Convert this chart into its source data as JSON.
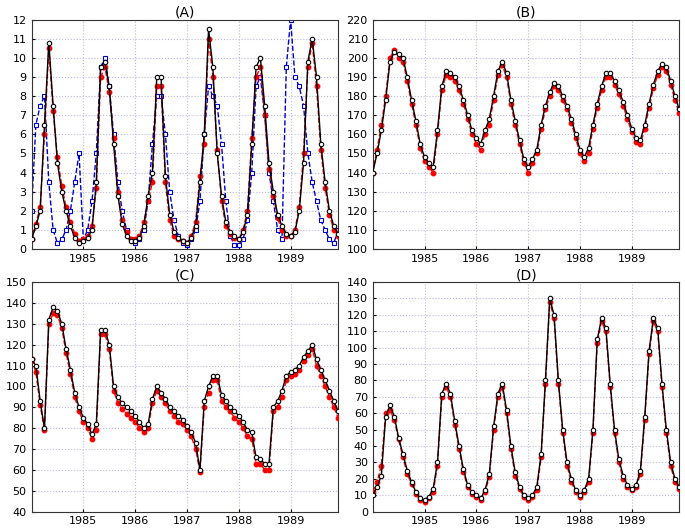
{
  "title_A": "(A)",
  "title_B": "(B)",
  "title_C": "(C)",
  "title_D": "(D)",
  "xlim": [
    1984.0,
    1989.92
  ],
  "ylim_A": [
    0,
    12
  ],
  "ylim_B": [
    100,
    220
  ],
  "ylim_C": [
    40,
    150
  ],
  "ylim_D": [
    0,
    140
  ],
  "yticks_A": [
    0,
    1,
    2,
    3,
    4,
    5,
    6,
    7,
    8,
    9,
    10,
    11,
    12
  ],
  "yticks_B": [
    100,
    110,
    120,
    130,
    140,
    150,
    160,
    170,
    180,
    190,
    200,
    210,
    220
  ],
  "yticks_C": [
    40,
    50,
    60,
    70,
    80,
    90,
    100,
    110,
    120,
    130,
    140,
    150
  ],
  "yticks_D": [
    0,
    10,
    20,
    30,
    40,
    50,
    60,
    70,
    80,
    90,
    100,
    110,
    120,
    130,
    140
  ],
  "xticks": [
    1985,
    1986,
    1987,
    1988,
    1989
  ],
  "color_black": "#000000",
  "color_red": "#ff0000",
  "color_blue": "#0000cc",
  "grid_color": "#bbbbdd",
  "bg_color": "#ffffff",
  "A_black": [
    0.5,
    1.2,
    2.0,
    6.5,
    10.8,
    7.5,
    4.5,
    3.0,
    2.0,
    1.2,
    0.6,
    0.3,
    0.4,
    0.6,
    1.0,
    3.5,
    9.5,
    9.8,
    8.5,
    5.5,
    2.8,
    1.3,
    0.7,
    0.4,
    0.4,
    0.6,
    1.2,
    2.8,
    4.0,
    9.0,
    9.0,
    3.8,
    1.8,
    0.9,
    0.6,
    0.4,
    0.3,
    0.6,
    1.2,
    3.5,
    6.0,
    11.5,
    9.5,
    5.0,
    2.8,
    1.4,
    0.9,
    0.7,
    0.5,
    0.9,
    1.8,
    5.5,
    9.5,
    10.0,
    7.5,
    4.5,
    3.0,
    1.8,
    1.2,
    0.8,
    0.7,
    0.9,
    2.0,
    4.5,
    9.8,
    11.0,
    9.0,
    5.5,
    3.5,
    2.0,
    1.2,
    0.8
  ],
  "A_red": [
    0.5,
    1.3,
    2.2,
    6.0,
    10.5,
    7.2,
    4.8,
    3.3,
    2.2,
    1.4,
    0.8,
    0.4,
    0.5,
    0.7,
    1.2,
    3.2,
    9.0,
    9.5,
    8.2,
    5.8,
    3.0,
    1.5,
    0.9,
    0.5,
    0.5,
    0.7,
    1.4,
    2.5,
    3.5,
    8.5,
    8.5,
    3.5,
    1.5,
    0.7,
    0.5,
    0.4,
    0.3,
    0.7,
    1.4,
    3.8,
    5.5,
    11.0,
    9.0,
    5.2,
    2.5,
    1.2,
    0.8,
    0.6,
    0.5,
    1.0,
    2.0,
    5.8,
    9.0,
    9.5,
    7.0,
    4.2,
    2.8,
    1.6,
    1.0,
    0.7,
    0.7,
    1.0,
    2.2,
    5.0,
    9.5,
    10.8,
    8.5,
    5.2,
    3.2,
    1.8,
    1.0,
    0.7
  ],
  "A_blue": [
    2.0,
    6.5,
    7.5,
    8.0,
    3.5,
    1.0,
    0.3,
    0.5,
    1.0,
    2.0,
    3.5,
    5.0,
    0.5,
    1.0,
    2.5,
    5.0,
    9.5,
    10.0,
    8.5,
    6.0,
    3.5,
    2.0,
    1.0,
    0.5,
    0.3,
    0.5,
    1.0,
    2.5,
    5.5,
    8.0,
    8.0,
    6.0,
    3.0,
    1.5,
    0.7,
    0.3,
    0.2,
    0.5,
    1.0,
    2.5,
    6.0,
    8.5,
    8.0,
    7.5,
    5.5,
    2.5,
    0.7,
    0.2,
    0.2,
    0.5,
    1.5,
    4.0,
    8.5,
    9.0,
    7.0,
    4.0,
    2.5,
    1.0,
    0.5,
    9.5,
    12.0,
    9.0,
    8.5,
    7.5,
    5.0,
    3.5,
    2.5,
    1.5,
    1.0,
    0.5,
    0.3,
    1.0
  ],
  "B_black": [
    140,
    150,
    162,
    178,
    198,
    203,
    202,
    200,
    190,
    178,
    167,
    155,
    148,
    145,
    143,
    162,
    185,
    193,
    192,
    190,
    185,
    178,
    170,
    162,
    158,
    155,
    162,
    168,
    180,
    193,
    198,
    192,
    178,
    167,
    157,
    147,
    143,
    147,
    152,
    165,
    175,
    182,
    187,
    185,
    180,
    175,
    168,
    160,
    152,
    148,
    153,
    165,
    176,
    185,
    192,
    192,
    188,
    183,
    177,
    170,
    163,
    158,
    157,
    165,
    176,
    186,
    193,
    197,
    195,
    188,
    180,
    173
  ],
  "B_red": [
    140,
    152,
    165,
    180,
    200,
    204,
    200,
    198,
    188,
    176,
    165,
    153,
    146,
    143,
    140,
    160,
    183,
    191,
    190,
    188,
    183,
    176,
    168,
    160,
    155,
    152,
    160,
    165,
    178,
    191,
    196,
    190,
    176,
    165,
    155,
    145,
    140,
    145,
    150,
    163,
    173,
    180,
    185,
    183,
    178,
    173,
    166,
    158,
    150,
    146,
    150,
    163,
    174,
    183,
    190,
    190,
    186,
    181,
    175,
    168,
    161,
    156,
    155,
    163,
    174,
    184,
    191,
    195,
    193,
    186,
    178,
    171
  ],
  "C_black": [
    113,
    110,
    93,
    80,
    132,
    138,
    136,
    130,
    118,
    108,
    97,
    90,
    85,
    82,
    77,
    82,
    127,
    127,
    120,
    100,
    95,
    92,
    90,
    88,
    86,
    83,
    80,
    82,
    94,
    100,
    97,
    94,
    90,
    88,
    86,
    84,
    81,
    78,
    73,
    60,
    93,
    100,
    105,
    105,
    96,
    93,
    90,
    88,
    86,
    83,
    79,
    78,
    66,
    65,
    63,
    63,
    90,
    93,
    98,
    105,
    107,
    108,
    110,
    114,
    117,
    120,
    113,
    108,
    103,
    98,
    93,
    88
  ],
  "C_red": [
    113,
    107,
    91,
    79,
    130,
    135,
    134,
    128,
    116,
    106,
    95,
    88,
    83,
    80,
    75,
    79,
    125,
    125,
    118,
    98,
    92,
    89,
    87,
    85,
    83,
    80,
    78,
    80,
    92,
    98,
    95,
    92,
    88,
    86,
    83,
    82,
    79,
    76,
    70,
    59,
    90,
    97,
    103,
    103,
    93,
    90,
    88,
    85,
    83,
    80,
    76,
    75,
    63,
    63,
    60,
    60,
    88,
    90,
    95,
    103,
    105,
    106,
    108,
    112,
    115,
    118,
    110,
    105,
    100,
    95,
    90,
    85
  ],
  "D_black": [
    10,
    15,
    22,
    58,
    65,
    58,
    45,
    35,
    25,
    18,
    12,
    8,
    7,
    9,
    14,
    30,
    72,
    78,
    72,
    55,
    40,
    26,
    16,
    12,
    10,
    8,
    13,
    23,
    52,
    72,
    78,
    62,
    40,
    24,
    15,
    10,
    8,
    10,
    15,
    35,
    80,
    130,
    120,
    80,
    50,
    30,
    20,
    13,
    10,
    13,
    20,
    50,
    105,
    118,
    112,
    78,
    50,
    32,
    22,
    16,
    14,
    16,
    25,
    58,
    98,
    118,
    112,
    78,
    50,
    30,
    20,
    15
  ],
  "D_red": [
    12,
    18,
    28,
    60,
    62,
    56,
    44,
    33,
    23,
    17,
    11,
    7,
    6,
    8,
    12,
    28,
    70,
    76,
    70,
    53,
    38,
    24,
    15,
    11,
    9,
    7,
    12,
    21,
    50,
    70,
    76,
    60,
    38,
    22,
    14,
    9,
    7,
    9,
    13,
    33,
    78,
    128,
    118,
    78,
    48,
    28,
    18,
    12,
    9,
    12,
    18,
    48,
    103,
    116,
    110,
    76,
    48,
    30,
    20,
    15,
    13,
    15,
    23,
    56,
    96,
    116,
    110,
    76,
    48,
    28,
    18,
    14
  ]
}
